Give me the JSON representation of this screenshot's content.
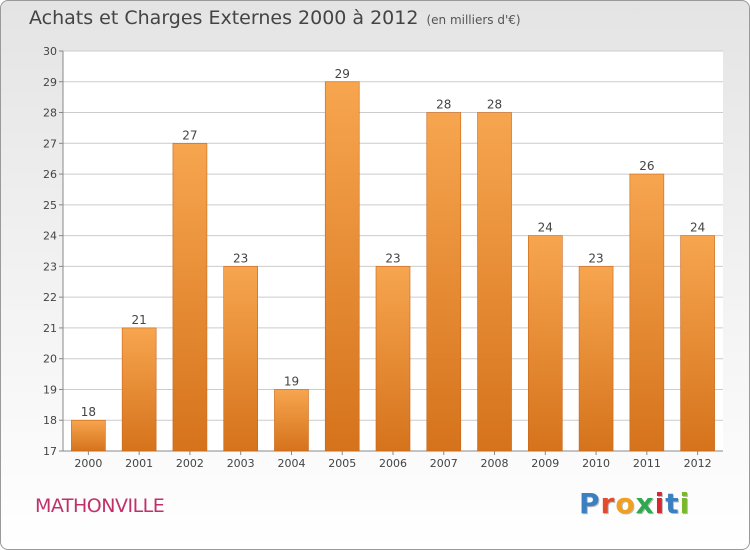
{
  "title": "Achats et Charges Externes 2000 à 2012",
  "unit": "(en milliers d'€)",
  "town": "MATHONVILLE",
  "logo": "Proxiti",
  "colors": {
    "bar_light": "#f7a54f",
    "bar_dark": "#d5731c",
    "grid": "#cccccc",
    "town": "#c0306a",
    "logo": [
      "#3a7fc1",
      "#e24b2b",
      "#f0a020",
      "#2fa84f",
      "#d7282f",
      "#3a7fc1",
      "#78b928"
    ]
  },
  "chart_data": {
    "type": "bar",
    "categories": [
      "2000",
      "2001",
      "2002",
      "2003",
      "2004",
      "2005",
      "2006",
      "2007",
      "2008",
      "2009",
      "2010",
      "2011",
      "2012"
    ],
    "values": [
      18,
      21,
      27,
      23,
      19,
      29,
      23,
      28,
      28,
      24,
      23,
      26,
      24
    ],
    "ylim": [
      17,
      30
    ],
    "yticks": [
      17,
      18,
      19,
      20,
      21,
      22,
      23,
      24,
      25,
      26,
      27,
      28,
      29,
      30
    ],
    "grid": true,
    "data_labels": true
  }
}
